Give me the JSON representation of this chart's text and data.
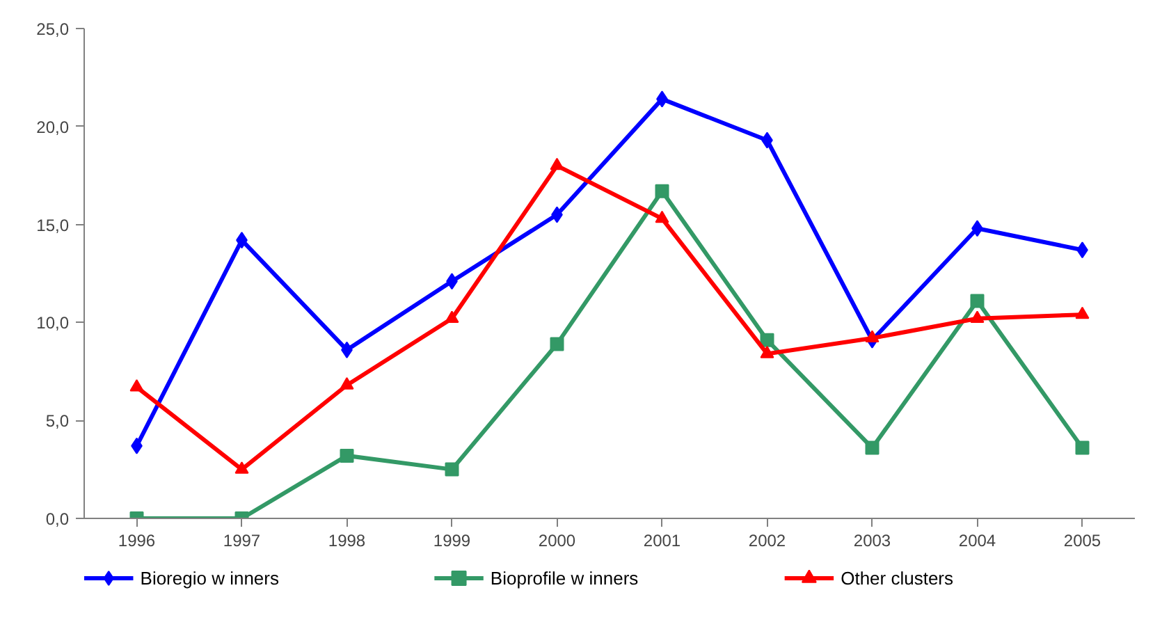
{
  "chart_data": {
    "type": "line",
    "categories": [
      "1996",
      "1997",
      "1998",
      "1999",
      "2000",
      "2001",
      "2002",
      "2003",
      "2004",
      "2005"
    ],
    "ylim": [
      0,
      25
    ],
    "yticks": [
      {
        "value": 0,
        "label": "0,0"
      },
      {
        "value": 5,
        "label": "5,0"
      },
      {
        "value": 10,
        "label": "10,0"
      },
      {
        "value": 15,
        "label": "15,0"
      },
      {
        "value": 20,
        "label": "20,0"
      },
      {
        "value": 25,
        "label": "25,0"
      }
    ],
    "legend": "bottom",
    "line_style": "solid",
    "series": [
      {
        "name": "Bioregio w inners",
        "color": "#0000ff",
        "marker": "diamond",
        "values": [
          3.7,
          14.2,
          8.6,
          12.1,
          15.5,
          21.4,
          19.3,
          9.1,
          14.8,
          13.7
        ]
      },
      {
        "name": "Bioprofile w inners",
        "color": "#339966",
        "marker": "square",
        "values": [
          0,
          0,
          3.2,
          2.5,
          8.9,
          16.7,
          9.1,
          3.6,
          11.1,
          3.6
        ]
      },
      {
        "name": "Other clusters",
        "color": "#ff0000",
        "marker": "triangle",
        "values": [
          6.7,
          2.5,
          6.8,
          10.2,
          18.0,
          15.3,
          8.4,
          9.2,
          10.2,
          10.4
        ]
      }
    ]
  }
}
